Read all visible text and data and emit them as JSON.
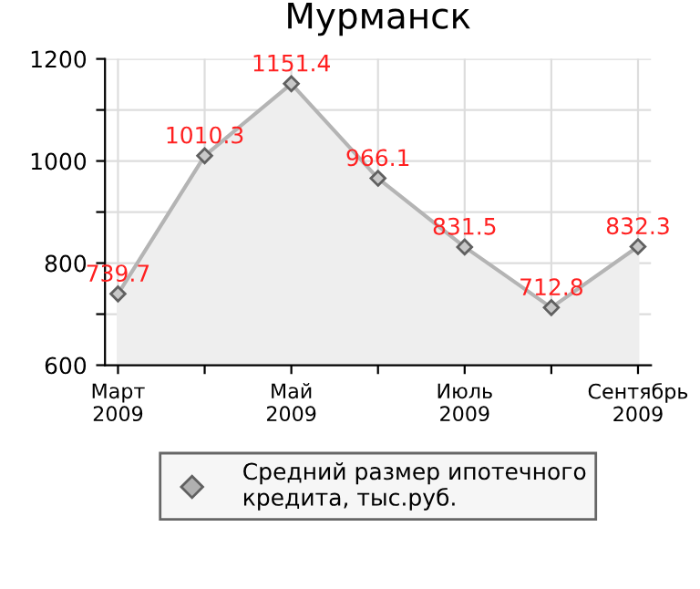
{
  "chart_data": {
    "type": "area",
    "title": "Мурманск",
    "categories": [
      "Март\n2009",
      null,
      "Май\n2009",
      null,
      "Июль\n2009",
      null,
      "Сентябрь\n2009"
    ],
    "series": [
      {
        "name": "Средний размер ипотечного\nкредита, тыс.руб.",
        "color": "#b4b4b4",
        "values": [
          739.7,
          1010.3,
          1151.4,
          966.1,
          831.5,
          712.8,
          832.3
        ]
      }
    ],
    "ylim": [
      600,
      1200
    ],
    "yticks": [
      600,
      {
        "value": 700,
        "label": null
      },
      800,
      {
        "value": 900,
        "label": null
      },
      1000,
      {
        "value": 1100,
        "label": null
      },
      1200
    ],
    "data_labels": true,
    "marker": "diamond",
    "grid": true,
    "legend": "bottom"
  }
}
